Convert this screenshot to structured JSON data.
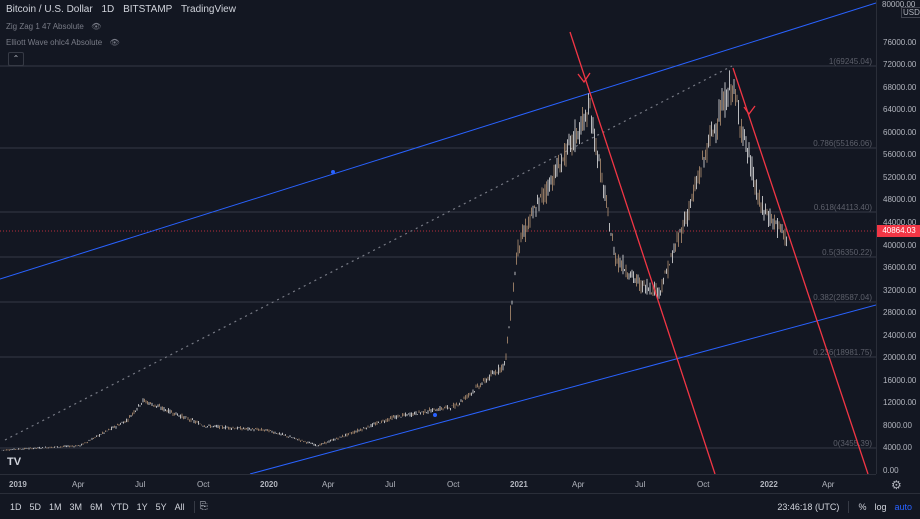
{
  "legend": {
    "symbol": "Bitcoin / U.S. Dollar",
    "interval": "1D",
    "exchange": "BITSTAMP",
    "provider": "TradingView",
    "indicator1": "Zig Zag 1 47 Absolute",
    "indicator2": "Elliott Wave ohlc4 Absolute"
  },
  "price_axis": {
    "currency": "USD",
    "top_label": "80000.00",
    "ticks": [
      "76000.00",
      "72000.00",
      "68000.00",
      "64000.00",
      "60000.00",
      "56000.00",
      "52000.00",
      "48000.00",
      "44000.00",
      "40000.00",
      "36000.00",
      "32000.00",
      "28000.00",
      "24000.00",
      "20000.00",
      "16000.00",
      "12000.00",
      "8000.00",
      "4000.00",
      "0.00"
    ],
    "current_price": "40864.03",
    "current_price_color": "#f23645"
  },
  "time_axis": {
    "ticks": [
      "2019",
      "Apr",
      "Jul",
      "Oct",
      "2020",
      "Apr",
      "Jul",
      "Oct",
      "2021",
      "Apr",
      "Jul",
      "Oct",
      "2022",
      "Apr"
    ]
  },
  "fib_levels": [
    {
      "label": "1(69245.04)"
    },
    {
      "label": "0.786(55166.06)"
    },
    {
      "label": "0.618(44113.40)"
    },
    {
      "label": "0.5(36350.22)"
    },
    {
      "label": "0.382(28587.04)"
    },
    {
      "label": "0.236(18981.75)"
    },
    {
      "label": "0(3455.39)"
    }
  ],
  "toolbar": {
    "ranges": [
      "1D",
      "5D",
      "1M",
      "3M",
      "6M",
      "YTD",
      "1Y",
      "5Y",
      "All"
    ],
    "clock": "23:46:18 (UTC)",
    "percent": "%",
    "log": "log",
    "auto": "auto"
  },
  "colors": {
    "background": "#131722",
    "channel": "#2962ff",
    "trendline": "#f23645",
    "candle_up": "#ffffff",
    "candle_down": "#c9a27e",
    "auto_active": "#2962ff"
  },
  "chart_data": {
    "type": "line",
    "title": "Bitcoin / U.S. Dollar",
    "xlabel": "",
    "ylabel": "",
    "ylim": [
      -2000,
      81000
    ],
    "grid": false,
    "x": [
      "2019-01",
      "2019-04",
      "2019-06",
      "2019-07",
      "2019-10",
      "2020-01",
      "2020-03",
      "2020-06",
      "2020-10",
      "2020-12",
      "2021-01",
      "2021-02",
      "2021-04",
      "2021-05",
      "2021-06",
      "2021-07",
      "2021-09",
      "2021-10",
      "2021-11",
      "2021-12",
      "2022-01"
    ],
    "series": [
      {
        "values": [
          3700,
          4500,
          9000,
          12500,
          8000,
          7200,
          4500,
          9500,
          11500,
          19000,
          40000,
          48000,
          64000,
          38000,
          33000,
          32000,
          47000,
          60000,
          68500,
          47000,
          40864
        ]
      }
    ]
  }
}
